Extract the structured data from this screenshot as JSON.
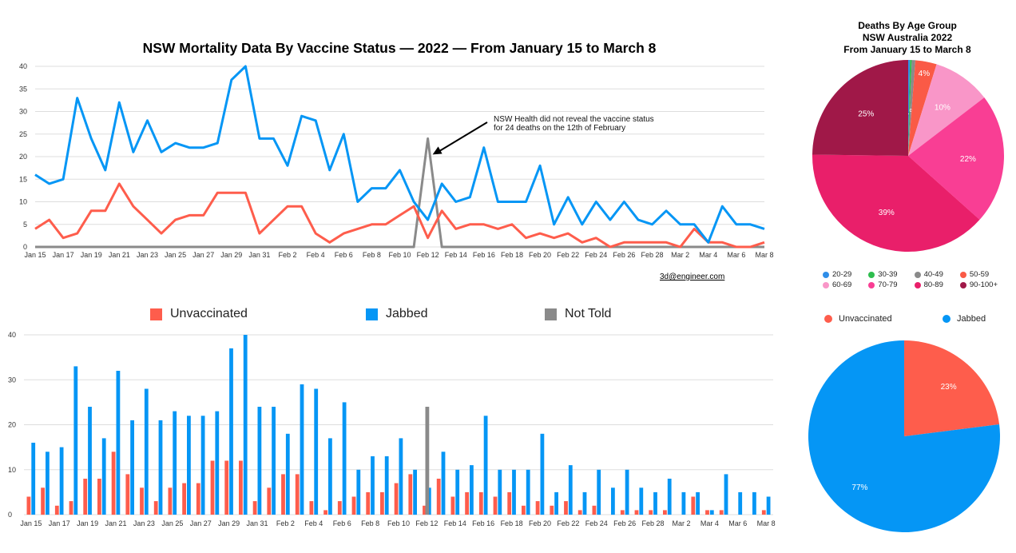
{
  "colors": {
    "unvaccinated": "#fe5d4c",
    "jabbed": "#0596f5",
    "not_told": "#8a8a8a",
    "grid": "#dddddd"
  },
  "chart_data": [
    {
      "type": "line",
      "title": "NSW Mortality Data By Vaccine Status — 2022 — From January 15 to March 8",
      "credit": "3d@engineer.com",
      "x": [
        "Jan 15",
        "Jan 16",
        "Jan 17",
        "Jan 18",
        "Jan 19",
        "Jan 20",
        "Jan 21",
        "Jan 22",
        "Jan 23",
        "Jan 24",
        "Jan 25",
        "Jan 26",
        "Jan 27",
        "Jan 28",
        "Jan 29",
        "Jan 30",
        "Jan 31",
        "Feb 1",
        "Feb 2",
        "Feb 3",
        "Feb 4",
        "Feb 5",
        "Feb 6",
        "Feb 7",
        "Feb 8",
        "Feb 9",
        "Feb 10",
        "Feb 11",
        "Feb 12",
        "Feb 13",
        "Feb 14",
        "Feb 15",
        "Feb 16",
        "Feb 17",
        "Feb 18",
        "Feb 19",
        "Feb 20",
        "Feb 21",
        "Feb 22",
        "Feb 23",
        "Feb 24",
        "Feb 25",
        "Feb 26",
        "Feb 27",
        "Feb 28",
        "Mar 1",
        "Mar 2",
        "Mar 3",
        "Mar 4",
        "Mar 5",
        "Mar 6",
        "Mar 7",
        "Mar 8"
      ],
      "tick_labels": [
        "Jan 15",
        "Jan 17",
        "Jan 19",
        "Jan 21",
        "Jan 23",
        "Jan 25",
        "Jan 27",
        "Jan 29",
        "Jan 31",
        "Feb 2",
        "Feb 4",
        "Feb 6",
        "Feb 8",
        "Feb 10",
        "Feb 12",
        "Feb 14",
        "Feb 16",
        "Feb 18",
        "Feb 20",
        "Feb 22",
        "Feb 24",
        "Feb 26",
        "Feb 28",
        "Mar 2",
        "Mar 4",
        "Mar 6",
        "Mar 8"
      ],
      "y_ticks": [
        "0",
        "5",
        "10",
        "15",
        "20",
        "25",
        "30",
        "35",
        "40"
      ],
      "ylim": [
        0,
        40
      ],
      "grid": true,
      "series": [
        {
          "name": "Unvaccinated",
          "values": [
            4,
            6,
            2,
            3,
            8,
            8,
            14,
            9,
            6,
            3,
            6,
            7,
            7,
            12,
            12,
            12,
            3,
            6,
            9,
            9,
            3,
            1,
            3,
            4,
            5,
            5,
            7,
            9,
            2,
            8,
            4,
            5,
            5,
            4,
            5,
            2,
            3,
            2,
            3,
            1,
            2,
            0,
            1,
            1,
            1,
            1,
            0,
            4,
            1,
            1,
            0,
            0,
            1
          ]
        },
        {
          "name": "Jabbed",
          "values": [
            16,
            14,
            15,
            33,
            24,
            17,
            32,
            21,
            28,
            21,
            23,
            22,
            22,
            23,
            37,
            40,
            24,
            24,
            18,
            29,
            28,
            17,
            25,
            10,
            13,
            13,
            17,
            10,
            6,
            14,
            10,
            11,
            22,
            10,
            10,
            10,
            18,
            5,
            11,
            5,
            10,
            6,
            10,
            6,
            5,
            8,
            5,
            5,
            1,
            9,
            5,
            5,
            4
          ]
        },
        {
          "name": "Not Told",
          "values": [
            0,
            0,
            0,
            0,
            0,
            0,
            0,
            0,
            0,
            0,
            0,
            0,
            0,
            0,
            0,
            0,
            0,
            0,
            0,
            0,
            0,
            0,
            0,
            0,
            0,
            0,
            0,
            0,
            24,
            0,
            0,
            0,
            0,
            0,
            0,
            0,
            0,
            0,
            0,
            0,
            0,
            0,
            0,
            0,
            0,
            0,
            0,
            0,
            0,
            0,
            0,
            0,
            0
          ]
        }
      ],
      "annotation": {
        "line1": "NSW Health did not reveal the vaccine status",
        "line2": "for 24 deaths on the 12th of February",
        "target_x": "Feb 12",
        "target_y": 24
      }
    },
    {
      "type": "bar",
      "legend": [
        "Unvaccinated",
        "Jabbed",
        "Not Told"
      ],
      "legend_position": "top",
      "y_ticks": [
        "0",
        "10",
        "20",
        "30",
        "40"
      ],
      "ylim": [
        0,
        40
      ],
      "grid": true,
      "uses_series_of_chart": 0
    },
    {
      "type": "pie",
      "title_lines": [
        "Deaths By Age Group",
        "NSW Australia 2022",
        "From January 15 to March 8"
      ],
      "legend_position": "bottom",
      "slices": [
        {
          "label": "20-29",
          "value": 0.3,
          "color": "#2f8ee8",
          "text": ""
        },
        {
          "label": "30-39",
          "value": 0.3,
          "color": "#2ebd4e",
          "text": ""
        },
        {
          "label": "40-49",
          "value": 0.6,
          "color": "#8a8a8a",
          "text": "1%"
        },
        {
          "label": "50-59",
          "value": 3.6,
          "color": "#fa5a46",
          "text": "4%"
        },
        {
          "label": "60-69",
          "value": 9.8,
          "color": "#f996c8",
          "text": "10%"
        },
        {
          "label": "70-79",
          "value": 22.0,
          "color": "#f93e94",
          "text": "22%"
        },
        {
          "label": "80-89",
          "value": 38.6,
          "color": "#e91f6a",
          "text": "39%"
        },
        {
          "label": "90-100+",
          "value": 24.8,
          "color": "#a01848",
          "text": "25%"
        }
      ]
    },
    {
      "type": "pie",
      "legend_position": "top",
      "slices": [
        {
          "label": "Unvaccinated",
          "value": 23,
          "color": "#fe5d4c",
          "text": "23%"
        },
        {
          "label": "Jabbed",
          "value": 77,
          "color": "#0596f5",
          "text": "77%"
        }
      ]
    }
  ]
}
